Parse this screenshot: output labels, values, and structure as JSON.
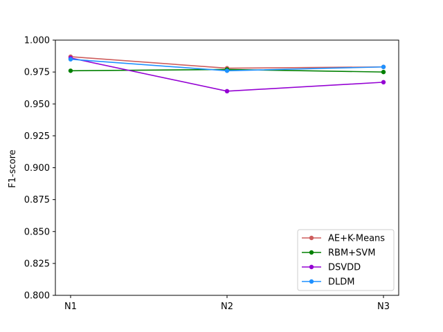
{
  "chart_data": {
    "type": "line",
    "title": "",
    "xlabel": "",
    "ylabel": "F1-score",
    "categories": [
      "N1",
      "N2",
      "N3"
    ],
    "ylim": [
      0.8,
      1.0
    ],
    "yticks": [
      0.8,
      0.825,
      0.85,
      0.875,
      0.9,
      0.925,
      0.95,
      0.975,
      1.0
    ],
    "ytick_labels": [
      "0.800",
      "0.825",
      "0.850",
      "0.875",
      "0.900",
      "0.925",
      "0.950",
      "0.975",
      "1.000"
    ],
    "grid": false,
    "legend_position": "lower-right",
    "series": [
      {
        "name": "AE+K-Means",
        "color": "#cd5c5c",
        "values": [
          0.987,
          0.978,
          0.979
        ]
      },
      {
        "name": "RBM+SVM",
        "color": "#008000",
        "values": [
          0.976,
          0.977,
          0.975
        ]
      },
      {
        "name": "DSVDD",
        "color": "#9400d3",
        "values": [
          0.986,
          0.96,
          0.967
        ]
      },
      {
        "name": "DLDM",
        "color": "#1e90ff",
        "values": [
          0.985,
          0.976,
          0.979
        ]
      }
    ]
  }
}
